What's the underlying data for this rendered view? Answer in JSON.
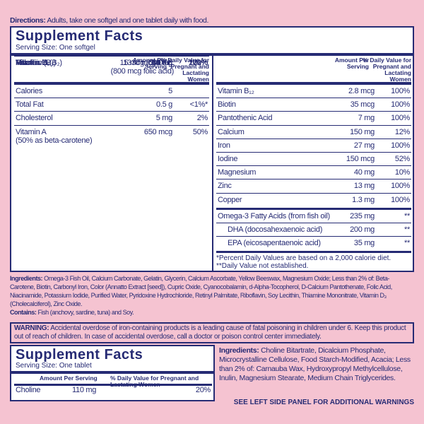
{
  "directions": {
    "label": "Directions:",
    "text": "Adults, take one softgel and one tablet daily with food."
  },
  "panel1": {
    "title": "Supplement Facts",
    "serving": "Serving Size: One softgel",
    "header_amount": "Amount Per Serving",
    "header_dv": "% Daily Value for Pregnant and Lactating Women",
    "left_rows": [
      {
        "name": "Calories",
        "amount": "5"
      },
      {
        "name": "Total Fat",
        "amount": "0.5 g",
        "dv": "<1%*"
      },
      {
        "name": "Cholesterol",
        "amount": "5 mg",
        "dv": "2%"
      },
      {
        "name": "Vitamin A",
        "note": "(50% as beta-carotene)",
        "amount": "650 mcg",
        "dv": "50%"
      },
      {
        "name": "Vitamin C",
        "amount": "85 mg",
        "dv": "71%"
      },
      {
        "name": "Vitamin D",
        "amount": "15 mcg (600 IU)",
        "dv": "100%"
      },
      {
        "name": "Vitamin E",
        "amount": "19 mg",
        "dv": "100%"
      },
      {
        "name": "Thiamin (B₁)",
        "amount": "1.4 mg",
        "dv": "100%"
      },
      {
        "name": "Riboflavin (B₂)",
        "amount": "1.6 mg",
        "dv": "100%"
      },
      {
        "name": "Niacin",
        "amount": "18 mg",
        "dv": "100%"
      },
      {
        "name": "Vitamin B₆",
        "amount": "2 mg",
        "dv": "100%"
      },
      {
        "name": "Folate",
        "amount": "1330 mcg DFE",
        "amount_note": "(800 mcg folic acid)",
        "dv": "222%"
      }
    ],
    "right_rows": [
      {
        "name": "Vitamin B₁₂",
        "amount": "2.8 mcg",
        "dv": "100%"
      },
      {
        "name": "Biotin",
        "amount": "35 mcg",
        "dv": "100%"
      },
      {
        "name": "Pantothenic Acid",
        "amount": "7 mg",
        "dv": "100%"
      },
      {
        "name": "Calcium",
        "amount": "150 mg",
        "dv": "12%"
      },
      {
        "name": "Iron",
        "amount": "27 mg",
        "dv": "100%"
      },
      {
        "name": "Iodine",
        "amount": "150 mcg",
        "dv": "52%"
      },
      {
        "name": "Magnesium",
        "amount": "40 mg",
        "dv": "10%"
      },
      {
        "name": "Zinc",
        "amount": "13 mg",
        "dv": "100%"
      },
      {
        "name": "Copper",
        "amount": "1.3 mg",
        "dv": "100%"
      }
    ],
    "omega_rows": [
      {
        "name": "Omega-3 Fatty Acids (from fish oil)",
        "amount": "235 mg",
        "dv": "**"
      },
      {
        "name": "DHA (docosahexaenoic acid)",
        "amount": "200 mg",
        "dv": "**"
      },
      {
        "name": "EPA (eicosapentaenoic acid)",
        "amount": "35 mg",
        "dv": "**"
      }
    ],
    "footnotes": [
      "*Percent Daily Values are based on a 2,000 calorie diet.",
      "**Daily Value not established."
    ]
  },
  "ingredients": {
    "label": "Ingredients:",
    "text": "Omega-3 Fish Oil, Calcium Carbonate, Gelatin, Glycerin, Calcium Ascorbate, Yellow Beeswax, Magnesium Oxide; Less than 2% of: Beta-Carotene, Biotin, Carbonyl Iron, Color (Annatto Extract [seed]), Cupric Oxide, Cyanocobalamin, d-Alpha-Tocopherol, D-Calcium Pantothenate, Folic Acid, Niacinamide, Potassium Iodide, Purified Water, Pyridoxine Hydrochloride, Retinyl Palmitate, Riboflavin, Soy Lecithin, Thiamine Mononitrate, Vitamin D₃ (Cholecalciferol), Zinc Oxide.",
    "contains_label": "Contains:",
    "contains_text": "Fish (anchovy, sardine, tuna) and Soy."
  },
  "warning": {
    "label": "WARNING:",
    "text": "Accidental overdose of iron-containing products is a leading cause of fatal poisoning in children under 6. Keep this product out of reach of children. In case of accidental overdose, call a doctor or poison control center immediately."
  },
  "panel2": {
    "title": "Supplement Facts",
    "serving": "Serving Size: One tablet",
    "header_amount": "Amount Per Serving",
    "header_dv": "% Daily Value for Pregnant and Lactating Women",
    "rows": [
      {
        "name": "Choline",
        "amount": "110 mg",
        "dv": "20%"
      }
    ]
  },
  "tablet_ingredients": {
    "label": "Ingredients:",
    "text": "Choline Bitartrate, Dicalcium Phosphate, Microcrystalline Cellulose, Food Starch-Modified, Acacia; Less than 2% of: Carnauba Wax, Hydroxypropyl Methylcellulose, Inulin, Magnesium Stearate, Medium Chain Triglycerides."
  },
  "side_note": "SEE LEFT SIDE PANEL FOR ADDITIONAL WARNINGS"
}
